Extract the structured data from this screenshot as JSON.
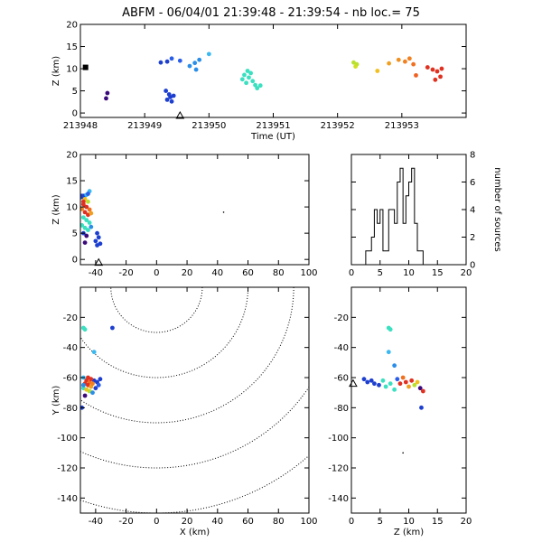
{
  "chart_data": [
    {
      "id": "time",
      "type": "scatter",
      "title": "ABFM - 06/04/01 21:39:48 - 21:39:54 - nb loc.=      75",
      "xlabel": "Time (UT)",
      "ylabel": "Z (km)",
      "xlim": [
        213948,
        213954
      ],
      "ylim": [
        -1,
        20
      ],
      "xticks": [
        213948,
        213949,
        213950,
        213951,
        213952,
        213953
      ],
      "xticklabels": [
        "213948",
        "213949",
        "213950",
        "213951",
        "213952",
        "213953"
      ],
      "yticks": [
        0,
        5,
        10,
        15,
        20
      ],
      "points": [
        {
          "x": 213948.08,
          "y": 10.3,
          "c": "#000000",
          "s": "square"
        },
        {
          "x": 213948.42,
          "y": 4.5,
          "c": "#3a0a7a"
        },
        {
          "x": 213948.4,
          "y": 3.3,
          "c": "#3a0a7a"
        },
        {
          "x": 213949.25,
          "y": 11.4,
          "c": "#1d3fcf"
        },
        {
          "x": 213949.35,
          "y": 11.6,
          "c": "#1d3fcf"
        },
        {
          "x": 213949.42,
          "y": 12.3,
          "c": "#2a5ee8"
        },
        {
          "x": 213949.55,
          "y": 11.8,
          "c": "#2a5ee8"
        },
        {
          "x": 213949.33,
          "y": 5.0,
          "c": "#1d3fcf"
        },
        {
          "x": 213949.38,
          "y": 4.2,
          "c": "#1d3fcf"
        },
        {
          "x": 213949.4,
          "y": 3.6,
          "c": "#1d3fcf"
        },
        {
          "x": 213949.35,
          "y": 3.0,
          "c": "#1d3fcf"
        },
        {
          "x": 213949.42,
          "y": 2.6,
          "c": "#1d3fcf"
        },
        {
          "x": 213949.45,
          "y": 3.9,
          "c": "#1d3fcf"
        },
        {
          "x": 213949.7,
          "y": 10.6,
          "c": "#2a8ee8"
        },
        {
          "x": 213949.78,
          "y": 11.3,
          "c": "#2a8ee8"
        },
        {
          "x": 213949.85,
          "y": 12.0,
          "c": "#2a8ee8"
        },
        {
          "x": 213949.8,
          "y": 9.8,
          "c": "#2a8ee8"
        },
        {
          "x": 213950.0,
          "y": 13.3,
          "c": "#3ab8f0"
        },
        {
          "x": 213950.6,
          "y": 9.5,
          "c": "#3ae0c0"
        },
        {
          "x": 213950.55,
          "y": 8.6,
          "c": "#3ae0c0"
        },
        {
          "x": 213950.62,
          "y": 8.0,
          "c": "#3ae0c0"
        },
        {
          "x": 213950.52,
          "y": 7.6,
          "c": "#3ae0c0"
        },
        {
          "x": 213950.68,
          "y": 7.2,
          "c": "#3ae0c0"
        },
        {
          "x": 213950.58,
          "y": 6.8,
          "c": "#3ae0c0"
        },
        {
          "x": 213950.72,
          "y": 6.3,
          "c": "#3ae0c0"
        },
        {
          "x": 213950.75,
          "y": 5.6,
          "c": "#3ae0c0"
        },
        {
          "x": 213950.65,
          "y": 9.0,
          "c": "#3ae0c0"
        },
        {
          "x": 213950.8,
          "y": 6.2,
          "c": "#3ae0c0"
        },
        {
          "x": 213952.25,
          "y": 11.4,
          "c": "#b8e030"
        },
        {
          "x": 213952.3,
          "y": 11.0,
          "c": "#b8e030"
        },
        {
          "x": 213952.28,
          "y": 10.5,
          "c": "#d0e020"
        },
        {
          "x": 213952.62,
          "y": 9.5,
          "c": "#f0c020"
        },
        {
          "x": 213952.8,
          "y": 11.2,
          "c": "#f0a020"
        },
        {
          "x": 213952.95,
          "y": 12.0,
          "c": "#f09020"
        },
        {
          "x": 213953.05,
          "y": 11.6,
          "c": "#f08020"
        },
        {
          "x": 213953.12,
          "y": 12.3,
          "c": "#f08020"
        },
        {
          "x": 213953.18,
          "y": 11.0,
          "c": "#f07020"
        },
        {
          "x": 213953.22,
          "y": 8.5,
          "c": "#f06020"
        },
        {
          "x": 213953.4,
          "y": 10.3,
          "c": "#e03020"
        },
        {
          "x": 213953.48,
          "y": 9.8,
          "c": "#e03020"
        },
        {
          "x": 213953.55,
          "y": 9.4,
          "c": "#e03020"
        },
        {
          "x": 213953.6,
          "y": 8.2,
          "c": "#e03020"
        },
        {
          "x": 213953.52,
          "y": 7.5,
          "c": "#e03020"
        },
        {
          "x": 213953.62,
          "y": 10.0,
          "c": "#e03020"
        }
      ],
      "station_marker": {
        "x": 213949.55,
        "y": -0.6
      }
    },
    {
      "id": "xz",
      "type": "scatter",
      "xlabel": "",
      "ylabel": "Z (km)",
      "xlim": [
        -50,
        100
      ],
      "ylim": [
        -1,
        20
      ],
      "xticks": [
        -40,
        -20,
        0,
        20,
        40,
        60,
        80,
        100
      ],
      "xticklabels": [
        "-40",
        "-20",
        "0",
        "20",
        "40",
        "60",
        "80",
        "100"
      ],
      "yticks": [
        0,
        5,
        10,
        15,
        20
      ],
      "points": [
        {
          "x": -48,
          "y": 12.0,
          "c": "#1d3fcf",
          "s": "square"
        },
        {
          "x": -46,
          "y": 12.3,
          "c": "#3ab8f0"
        },
        {
          "x": -44,
          "y": 13.0,
          "c": "#3ab8f0"
        },
        {
          "x": -47,
          "y": 11.5,
          "c": "#f0c020"
        },
        {
          "x": -45,
          "y": 11.0,
          "c": "#b8e030"
        },
        {
          "x": -48,
          "y": 10.5,
          "c": "#e03020"
        },
        {
          "x": -46,
          "y": 10.0,
          "c": "#e03020"
        },
        {
          "x": -44,
          "y": 9.5,
          "c": "#f07020"
        },
        {
          "x": -47,
          "y": 9.0,
          "c": "#e03020"
        },
        {
          "x": -45,
          "y": 8.5,
          "c": "#e03020"
        },
        {
          "x": -43,
          "y": 8.8,
          "c": "#f0a020"
        },
        {
          "x": -48,
          "y": 8.0,
          "c": "#3ae0c0"
        },
        {
          "x": -46,
          "y": 7.5,
          "c": "#3ae0c0"
        },
        {
          "x": -44,
          "y": 7.0,
          "c": "#3ae0c0"
        },
        {
          "x": -49,
          "y": 6.5,
          "c": "#3ae0c0"
        },
        {
          "x": -47,
          "y": 6.0,
          "c": "#3ae0c0"
        },
        {
          "x": -45,
          "y": 5.6,
          "c": "#3ae0c0"
        },
        {
          "x": -43,
          "y": 6.2,
          "c": "#2a8ee8"
        },
        {
          "x": -48,
          "y": 5.0,
          "c": "#1d3fcf"
        },
        {
          "x": -46,
          "y": 4.5,
          "c": "#3a0a7a"
        },
        {
          "x": -47,
          "y": 3.2,
          "c": "#3a0a7a"
        },
        {
          "x": -39,
          "y": 5.0,
          "c": "#1d3fcf"
        },
        {
          "x": -38,
          "y": 4.2,
          "c": "#1d3fcf"
        },
        {
          "x": -40,
          "y": 3.5,
          "c": "#1d3fcf"
        },
        {
          "x": -37,
          "y": 3.0,
          "c": "#1d3fcf"
        },
        {
          "x": -39,
          "y": 2.7,
          "c": "#1d3fcf"
        },
        {
          "x": -48,
          "y": 11.0,
          "c": "#e03020"
        },
        {
          "x": -49,
          "y": 9.6,
          "c": "#f08020"
        },
        {
          "x": -45,
          "y": 12.5,
          "c": "#2a5ee8"
        },
        {
          "x": 44,
          "y": 9.0,
          "c": "#000000",
          "s": "dot"
        }
      ],
      "station_marker": {
        "x": -38,
        "y": -0.6
      }
    },
    {
      "id": "hist",
      "type": "histogram",
      "xlabel": "",
      "ylabel": "number of sources",
      "xlim": [
        0,
        20
      ],
      "ylim": [
        0,
        8
      ],
      "xticks": [
        0,
        5,
        10,
        15,
        20
      ],
      "xticklabels": [
        "0",
        "5",
        "10",
        "15",
        "20"
      ],
      "yticks": [
        0,
        2,
        4,
        6,
        8
      ],
      "yaxis_side": "right",
      "bin_width": 0.5,
      "bin_start": 2.5,
      "counts": [
        1,
        1,
        2,
        4,
        3,
        4,
        1,
        1,
        4,
        4,
        3,
        6,
        7,
        3,
        5,
        6,
        7,
        3,
        1,
        1
      ]
    },
    {
      "id": "xy",
      "type": "scatter",
      "xlabel": "X (km)",
      "ylabel": "Y (km)",
      "xlim": [
        -50,
        100
      ],
      "ylim": [
        -150,
        0
      ],
      "xticks": [
        -40,
        -20,
        0,
        20,
        40,
        60,
        80,
        100
      ],
      "xticklabels": [
        "-40",
        "-20",
        "0",
        "20",
        "40",
        "60",
        "80",
        "100"
      ],
      "yticks": [
        -140,
        -120,
        -100,
        -80,
        -60,
        -40,
        -20
      ],
      "range_rings_km": [
        30,
        60,
        90,
        120,
        150
      ],
      "ring_center": [
        0,
        0
      ],
      "points": [
        {
          "x": -48,
          "y": -27,
          "c": "#3ae0c0"
        },
        {
          "x": -47,
          "y": -28,
          "c": "#3ae0c0"
        },
        {
          "x": -29,
          "y": -27,
          "c": "#1d3fcf"
        },
        {
          "x": -41,
          "y": -43,
          "c": "#3ab8f0"
        },
        {
          "x": -48,
          "y": -60,
          "c": "#3ab8f0"
        },
        {
          "x": -46,
          "y": -62,
          "c": "#e03020"
        },
        {
          "x": -44,
          "y": -63,
          "c": "#f07020"
        },
        {
          "x": -47,
          "y": -64,
          "c": "#e03020"
        },
        {
          "x": -45,
          "y": -65,
          "c": "#e03020"
        },
        {
          "x": -43,
          "y": -66,
          "c": "#f0a020"
        },
        {
          "x": -48,
          "y": -67,
          "c": "#3ae0c0"
        },
        {
          "x": -46,
          "y": -68,
          "c": "#f0c020"
        },
        {
          "x": -44,
          "y": -69,
          "c": "#b8e030"
        },
        {
          "x": -41,
          "y": -62,
          "c": "#1d3fcf"
        },
        {
          "x": -39,
          "y": -63,
          "c": "#1d3fcf"
        },
        {
          "x": -37,
          "y": -61,
          "c": "#1d3fcf"
        },
        {
          "x": -38,
          "y": -65,
          "c": "#2a5ee8"
        },
        {
          "x": -40,
          "y": -67,
          "c": "#1d3fcf"
        },
        {
          "x": -42,
          "y": -70,
          "c": "#2a8ee8"
        },
        {
          "x": -47,
          "y": -72,
          "c": "#3a0a7a"
        },
        {
          "x": -49,
          "y": -80,
          "c": "#1d3fcf"
        },
        {
          "x": -45,
          "y": -60,
          "c": "#e03020"
        },
        {
          "x": -43,
          "y": -61,
          "c": "#e03020"
        },
        {
          "x": -48,
          "y": -65,
          "c": "#2a8ee8"
        },
        {
          "x": -42,
          "y": -64,
          "c": "#f08020"
        }
      ]
    },
    {
      "id": "zy",
      "type": "scatter",
      "xlabel": "Z (km)",
      "ylabel": "",
      "xlim": [
        0,
        20
      ],
      "ylim": [
        -150,
        0
      ],
      "xticks": [
        0,
        5,
        10,
        15,
        20
      ],
      "xticklabels": [
        "0",
        "5",
        "10",
        "15",
        "20"
      ],
      "yticks": [
        -140,
        -120,
        -100,
        -80,
        -60,
        -40,
        -20
      ],
      "points": [
        {
          "x": 6.5,
          "y": -27,
          "c": "#3ae0c0"
        },
        {
          "x": 6.8,
          "y": -28,
          "c": "#3ae0c0"
        },
        {
          "x": 6.5,
          "y": -43,
          "c": "#3ab8f0"
        },
        {
          "x": 7.5,
          "y": -52,
          "c": "#2a8ee8"
        },
        {
          "x": 2.2,
          "y": -61,
          "c": "#1d3fcf"
        },
        {
          "x": 2.8,
          "y": -63,
          "c": "#1d3fcf"
        },
        {
          "x": 3.5,
          "y": -62,
          "c": "#1d3fcf"
        },
        {
          "x": 4.0,
          "y": -64,
          "c": "#1d3fcf"
        },
        {
          "x": 4.8,
          "y": -65,
          "c": "#1d3fcf"
        },
        {
          "x": 5.5,
          "y": -62,
          "c": "#3ae0c0"
        },
        {
          "x": 6.0,
          "y": -66,
          "c": "#3ae0c0"
        },
        {
          "x": 6.8,
          "y": -64,
          "c": "#3ae0c0"
        },
        {
          "x": 7.5,
          "y": -68,
          "c": "#3ae0c0"
        },
        {
          "x": 8.0,
          "y": -61,
          "c": "#2a5ee8"
        },
        {
          "x": 8.5,
          "y": -64,
          "c": "#e03020"
        },
        {
          "x": 9.0,
          "y": -60,
          "c": "#f07020"
        },
        {
          "x": 9.5,
          "y": -63,
          "c": "#e03020"
        },
        {
          "x": 10.0,
          "y": -66,
          "c": "#f0a020"
        },
        {
          "x": 10.5,
          "y": -62,
          "c": "#e03020"
        },
        {
          "x": 11.0,
          "y": -65,
          "c": "#b8e030"
        },
        {
          "x": 11.5,
          "y": -63,
          "c": "#f0c020"
        },
        {
          "x": 12.0,
          "y": -67,
          "c": "#3a0a7a"
        },
        {
          "x": 12.5,
          "y": -69,
          "c": "#e03020"
        },
        {
          "x": 12.2,
          "y": -80,
          "c": "#1d3fcf"
        },
        {
          "x": 9.0,
          "y": -110,
          "c": "#000000",
          "s": "dot"
        }
      ],
      "station_marker": {
        "x": 0.3,
        "y": -64
      }
    }
  ]
}
